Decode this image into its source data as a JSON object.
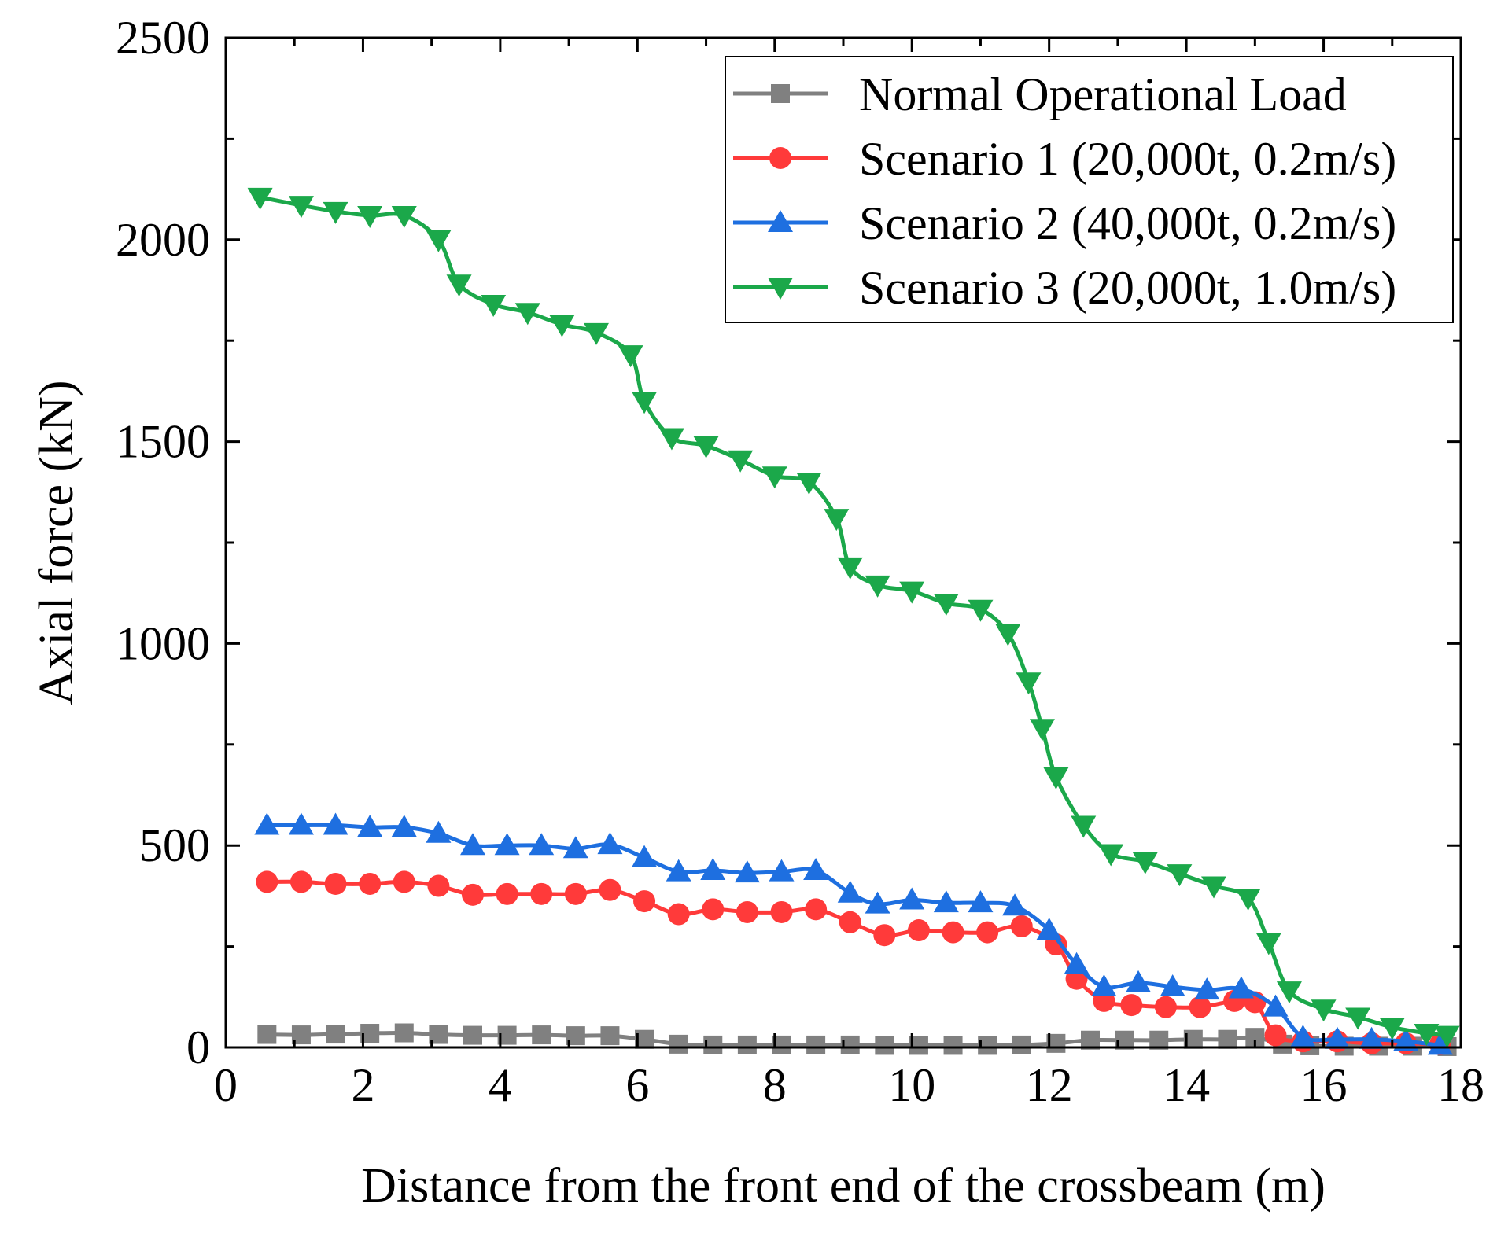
{
  "chart_data": {
    "type": "line",
    "title": "",
    "xlabel": "Distance from the front end of the crossbeam (m)",
    "ylabel": "Axial force (kN)",
    "xlim": [
      0,
      18
    ],
    "ylim": [
      0,
      2500
    ],
    "xticks": [
      0,
      2,
      4,
      6,
      8,
      10,
      12,
      14,
      16,
      18
    ],
    "yticks": [
      0,
      500,
      1000,
      1500,
      2000,
      2500
    ],
    "legend_position": "top-right",
    "series": [
      {
        "name": "Normal Operational Load",
        "color": "#808080",
        "marker": "square",
        "points": [
          [
            0.6,
            32
          ],
          [
            1.1,
            31
          ],
          [
            1.6,
            33
          ],
          [
            2.1,
            35
          ],
          [
            2.6,
            36
          ],
          [
            3.1,
            32
          ],
          [
            3.6,
            30
          ],
          [
            4.1,
            30
          ],
          [
            4.6,
            31
          ],
          [
            5.1,
            29
          ],
          [
            5.6,
            29
          ],
          [
            6.1,
            20
          ],
          [
            6.6,
            8
          ],
          [
            7.1,
            6
          ],
          [
            7.6,
            6
          ],
          [
            8.1,
            6
          ],
          [
            8.6,
            6
          ],
          [
            9.1,
            6
          ],
          [
            9.6,
            5
          ],
          [
            10.1,
            5
          ],
          [
            10.6,
            5
          ],
          [
            11.1,
            5
          ],
          [
            11.6,
            6
          ],
          [
            12.1,
            10
          ],
          [
            12.6,
            18
          ],
          [
            13.1,
            18
          ],
          [
            13.6,
            18
          ],
          [
            14.1,
            20
          ],
          [
            14.6,
            20
          ],
          [
            15.0,
            25
          ],
          [
            15.4,
            8
          ],
          [
            15.8,
            4
          ],
          [
            16.3,
            3
          ],
          [
            16.8,
            3
          ],
          [
            17.3,
            3
          ],
          [
            17.8,
            2
          ]
        ]
      },
      {
        "name": "Scenario 1 (20,000t, 0.2m/s)",
        "color": "#ff3a3a",
        "marker": "circle",
        "points": [
          [
            0.6,
            410
          ],
          [
            1.1,
            410
          ],
          [
            1.6,
            405
          ],
          [
            2.1,
            405
          ],
          [
            2.6,
            410
          ],
          [
            3.1,
            400
          ],
          [
            3.6,
            378
          ],
          [
            4.1,
            380
          ],
          [
            4.6,
            380
          ],
          [
            5.1,
            380
          ],
          [
            5.6,
            390
          ],
          [
            6.1,
            362
          ],
          [
            6.6,
            330
          ],
          [
            7.1,
            342
          ],
          [
            7.6,
            335
          ],
          [
            8.1,
            335
          ],
          [
            8.6,
            342
          ],
          [
            9.1,
            310
          ],
          [
            9.6,
            278
          ],
          [
            10.1,
            290
          ],
          [
            10.6,
            285
          ],
          [
            11.1,
            285
          ],
          [
            11.6,
            300
          ],
          [
            12.1,
            255
          ],
          [
            12.4,
            170
          ],
          [
            12.8,
            115
          ],
          [
            13.2,
            105
          ],
          [
            13.7,
            100
          ],
          [
            14.2,
            100
          ],
          [
            14.7,
            115
          ],
          [
            15.0,
            112
          ],
          [
            15.3,
            30
          ],
          [
            15.7,
            15
          ],
          [
            16.2,
            15
          ],
          [
            16.7,
            10
          ],
          [
            17.2,
            10
          ],
          [
            17.7,
            8
          ]
        ]
      },
      {
        "name": "Scenario 2 (40,000t, 0.2m/s)",
        "color": "#1e6fe0",
        "marker": "triangle-up",
        "points": [
          [
            0.6,
            550
          ],
          [
            1.1,
            550
          ],
          [
            1.6,
            550
          ],
          [
            2.1,
            545
          ],
          [
            2.6,
            545
          ],
          [
            3.1,
            530
          ],
          [
            3.6,
            500
          ],
          [
            4.1,
            500
          ],
          [
            4.6,
            500
          ],
          [
            5.1,
            492
          ],
          [
            5.6,
            502
          ],
          [
            6.1,
            470
          ],
          [
            6.6,
            435
          ],
          [
            7.1,
            438
          ],
          [
            7.6,
            432
          ],
          [
            8.1,
            435
          ],
          [
            8.6,
            438
          ],
          [
            9.1,
            382
          ],
          [
            9.5,
            355
          ],
          [
            10.0,
            365
          ],
          [
            10.5,
            358
          ],
          [
            11.0,
            358
          ],
          [
            11.5,
            350
          ],
          [
            12.0,
            290
          ],
          [
            12.4,
            205
          ],
          [
            12.8,
            150
          ],
          [
            13.3,
            160
          ],
          [
            13.8,
            150
          ],
          [
            14.3,
            142
          ],
          [
            14.8,
            145
          ],
          [
            15.3,
            100
          ],
          [
            15.7,
            25
          ],
          [
            16.2,
            20
          ],
          [
            16.7,
            20
          ],
          [
            17.2,
            15
          ],
          [
            17.7,
            5
          ]
        ]
      },
      {
        "name": "Scenario 3 (20,000t, 1.0m/s)",
        "color": "#1ba84a",
        "marker": "triangle-down",
        "points": [
          [
            0.5,
            2105
          ],
          [
            1.1,
            2085
          ],
          [
            1.6,
            2070
          ],
          [
            2.1,
            2060
          ],
          [
            2.6,
            2060
          ],
          [
            3.1,
            2000
          ],
          [
            3.4,
            1890
          ],
          [
            3.9,
            1840
          ],
          [
            4.4,
            1820
          ],
          [
            4.9,
            1790
          ],
          [
            5.4,
            1770
          ],
          [
            5.9,
            1715
          ],
          [
            6.1,
            1600
          ],
          [
            6.5,
            1510
          ],
          [
            7.0,
            1490
          ],
          [
            7.5,
            1455
          ],
          [
            8.0,
            1415
          ],
          [
            8.5,
            1400
          ],
          [
            8.9,
            1310
          ],
          [
            9.1,
            1190
          ],
          [
            9.5,
            1145
          ],
          [
            10.0,
            1130
          ],
          [
            10.5,
            1100
          ],
          [
            11.0,
            1085
          ],
          [
            11.4,
            1025
          ],
          [
            11.7,
            905
          ],
          [
            11.9,
            790
          ],
          [
            12.1,
            670
          ],
          [
            12.5,
            550
          ],
          [
            12.9,
            480
          ],
          [
            13.4,
            460
          ],
          [
            13.9,
            430
          ],
          [
            14.4,
            400
          ],
          [
            14.9,
            370
          ],
          [
            15.2,
            260
          ],
          [
            15.5,
            140
          ],
          [
            16.0,
            95
          ],
          [
            16.5,
            75
          ],
          [
            17.0,
            50
          ],
          [
            17.5,
            35
          ],
          [
            17.8,
            30
          ]
        ]
      }
    ]
  }
}
